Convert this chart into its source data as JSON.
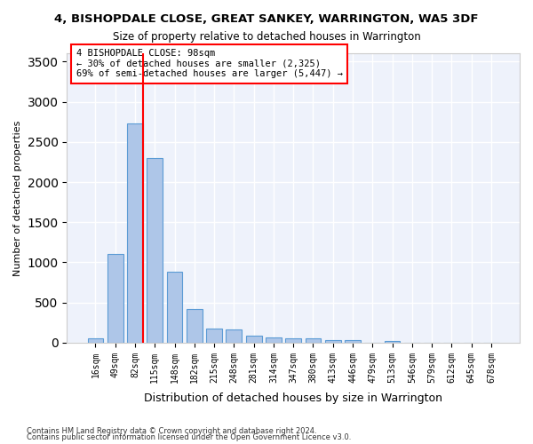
{
  "title": "4, BISHOPDALE CLOSE, GREAT SANKEY, WARRINGTON, WA5 3DF",
  "subtitle": "Size of property relative to detached houses in Warrington",
  "xlabel": "Distribution of detached houses by size in Warrington",
  "ylabel": "Number of detached properties",
  "categories": [
    "16sqm",
    "49sqm",
    "82sqm",
    "115sqm",
    "148sqm",
    "182sqm",
    "215sqm",
    "248sqm",
    "281sqm",
    "314sqm",
    "347sqm",
    "380sqm",
    "413sqm",
    "446sqm",
    "479sqm",
    "513sqm",
    "546sqm",
    "579sqm",
    "612sqm",
    "645sqm",
    "678sqm"
  ],
  "values": [
    55,
    1100,
    2730,
    2300,
    880,
    420,
    175,
    170,
    90,
    65,
    55,
    50,
    35,
    30,
    0,
    25,
    0,
    0,
    0,
    0,
    0
  ],
  "bar_color": "#aec6e8",
  "bar_edge_color": "#5b9bd5",
  "vline_x": 2,
  "vline_color": "red",
  "annotation_text": "4 BISHOPDALE CLOSE: 98sqm\n← 30% of detached houses are smaller (2,325)\n69% of semi-detached houses are larger (5,447) →",
  "annotation_box_color": "white",
  "annotation_box_edge": "red",
  "ylim": [
    0,
    3600
  ],
  "yticks": [
    0,
    500,
    1000,
    1500,
    2000,
    2500,
    3000,
    3500
  ],
  "background_color": "#eef2fb",
  "grid_color": "white",
  "footer_line1": "Contains HM Land Registry data © Crown copyright and database right 2024.",
  "footer_line2": "Contains public sector information licensed under the Open Government Licence v3.0."
}
